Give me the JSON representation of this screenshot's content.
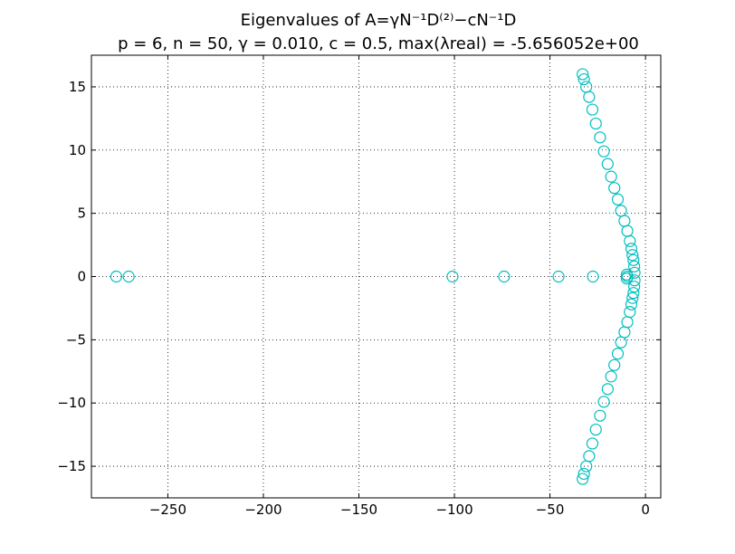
{
  "chart_data": {
    "type": "scatter",
    "title": "Eigenvalues of A=γN⁻¹D⁽²⁾−cN⁻¹D",
    "subtitle": "p = 6, n = 50, γ = 0.010, c = 0.5, max(λreal) = -5.656052e+00",
    "xlabel": "",
    "ylabel": "",
    "xlim": [
      -290,
      8
    ],
    "ylim": [
      -17.5,
      17.5
    ],
    "xticks": [
      -250,
      -200,
      -150,
      -100,
      -50,
      0
    ],
    "yticks": [
      -15,
      -10,
      -5,
      0,
      5,
      10,
      15
    ],
    "xtick_labels": [
      "−250",
      "−200",
      "−150",
      "−100",
      "−50",
      "0"
    ],
    "ytick_labels": [
      "−15",
      "−10",
      "−5",
      "0",
      "5",
      "10",
      "15"
    ],
    "grid": true,
    "marker": "open-circle",
    "color": "#00BFBF",
    "series": [
      {
        "points": [
          [
            -277.0,
            0
          ],
          [
            -270.5,
            0
          ],
          [
            -101.0,
            0
          ],
          [
            -74.0,
            0
          ],
          [
            -45.5,
            0
          ],
          [
            -27.5,
            0
          ],
          [
            -9.8,
            0.15
          ],
          [
            -9.8,
            -0.15
          ],
          [
            -9.4,
            0.0
          ],
          [
            -5.7,
            0.3
          ],
          [
            -5.7,
            -0.3
          ],
          [
            -5.9,
            0.8
          ],
          [
            -5.9,
            -0.8
          ],
          [
            -6.3,
            1.3
          ],
          [
            -6.3,
            -1.3
          ],
          [
            -6.8,
            1.7
          ],
          [
            -6.8,
            -1.7
          ],
          [
            -7.4,
            2.2
          ],
          [
            -7.4,
            -2.2
          ],
          [
            -8.2,
            2.8
          ],
          [
            -8.2,
            -2.8
          ],
          [
            -9.5,
            3.6
          ],
          [
            -9.5,
            -3.6
          ],
          [
            -11.0,
            4.4
          ],
          [
            -11.0,
            -4.4
          ],
          [
            -12.8,
            5.2
          ],
          [
            -12.8,
            -5.2
          ],
          [
            -14.5,
            6.1
          ],
          [
            -14.5,
            -6.1
          ],
          [
            -16.3,
            7.0
          ],
          [
            -16.3,
            -7.0
          ],
          [
            -18.0,
            7.9
          ],
          [
            -18.0,
            -7.9
          ],
          [
            -19.8,
            8.9
          ],
          [
            -19.8,
            -8.9
          ],
          [
            -21.8,
            9.9
          ],
          [
            -21.8,
            -9.9
          ],
          [
            -23.8,
            11.0
          ],
          [
            -23.8,
            -11.0
          ],
          [
            -26.0,
            12.1
          ],
          [
            -26.0,
            -12.1
          ],
          [
            -27.8,
            13.2
          ],
          [
            -27.8,
            -13.2
          ],
          [
            -29.5,
            14.2
          ],
          [
            -29.5,
            -14.2
          ],
          [
            -31.0,
            15.0
          ],
          [
            -31.0,
            -15.0
          ],
          [
            -32.2,
            15.6
          ],
          [
            -32.2,
            -15.6
          ],
          [
            -32.9,
            16.0
          ],
          [
            -32.9,
            -16.0
          ]
        ]
      }
    ]
  }
}
